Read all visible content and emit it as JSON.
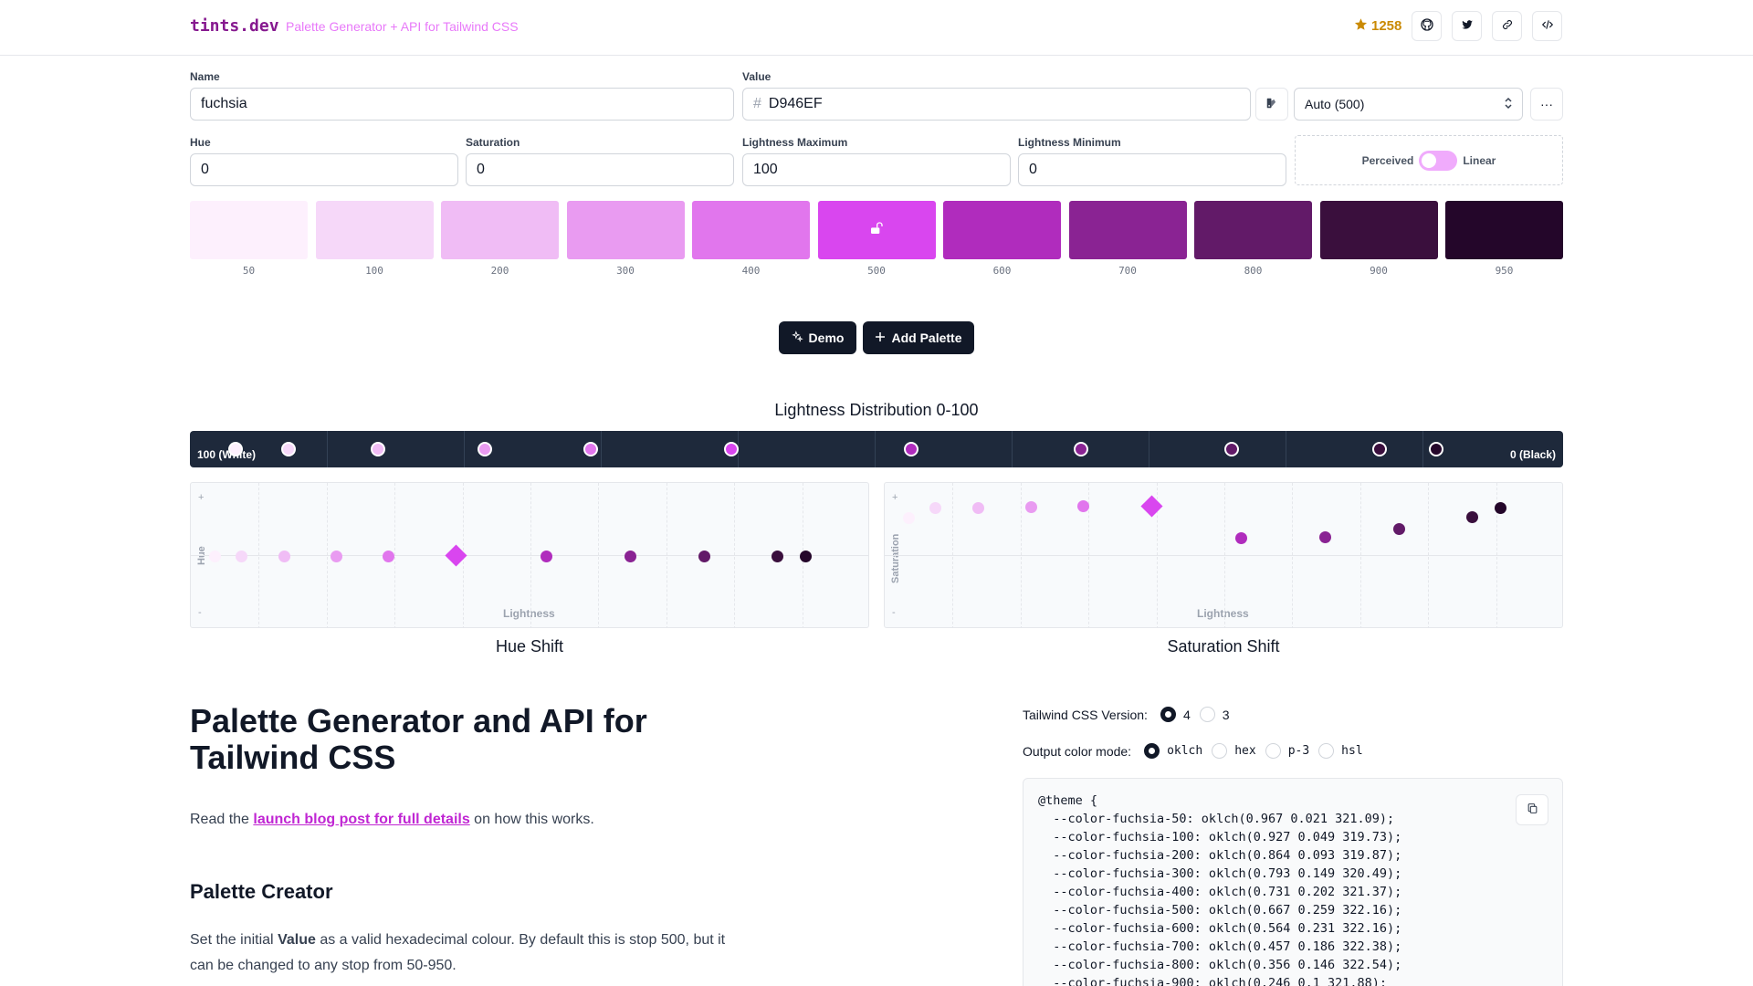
{
  "header": {
    "brand": "tints.dev",
    "tagline": "Palette Generator + API for Tailwind CSS",
    "stars": "1258",
    "icons": [
      "github-icon",
      "twitter-icon",
      "link-icon",
      "code-icon"
    ]
  },
  "form": {
    "name_label": "Name",
    "name_value": "fuchsia",
    "value_label": "Value",
    "value_hash": "#",
    "value_value": "D946EF",
    "stop_select": "Auto (500)",
    "more_label": "···",
    "hue_label": "Hue",
    "hue_value": "0",
    "saturation_label": "Saturation",
    "saturation_value": "0",
    "lmax_label": "Lightness Maximum",
    "lmax_value": "100",
    "lmin_label": "Lightness Minimum",
    "lmin_value": "0",
    "toggle_left": "Perceived",
    "toggle_right": "Linear"
  },
  "swatches": [
    {
      "stop": "50",
      "color": "#fdf0fd"
    },
    {
      "stop": "100",
      "color": "#f6d8f9"
    },
    {
      "stop": "200",
      "color": "#f0bcf5"
    },
    {
      "stop": "300",
      "color": "#e99bf1"
    },
    {
      "stop": "400",
      "color": "#e176ed"
    },
    {
      "stop": "500",
      "color": "#d946ef"
    },
    {
      "stop": "600",
      "color": "#b02cbd"
    },
    {
      "stop": "700",
      "color": "#8a2393"
    },
    {
      "stop": "800",
      "color": "#621a68"
    },
    {
      "stop": "900",
      "color": "#3a0f3d"
    },
    {
      "stop": "950",
      "color": "#24062a"
    }
  ],
  "actions": {
    "demo": "Demo",
    "add_palette": "Add Palette"
  },
  "lightness": {
    "title": "Lightness Distribution 0-100",
    "left_label": "100 (White)",
    "right_label": "0 (Black)"
  },
  "hue_chart": {
    "title": "Hue Shift",
    "ylabel": "Hue",
    "xlabel": "Lightness",
    "plus": "+",
    "minus": "-"
  },
  "sat_chart": {
    "title": "Saturation Shift",
    "ylabel": "Saturation",
    "xlabel": "Lightness",
    "plus": "+",
    "minus": "-"
  },
  "content": {
    "heading": "Palette Generator and API for Tailwind CSS",
    "read_prefix": "Read the ",
    "read_link": "launch blog post for full details",
    "read_suffix": " on how this works.",
    "creator_heading": "Palette Creator",
    "creator_p1": "Set the initial ",
    "creator_bold": "Value",
    "creator_p2": " as a valid hexadecimal colour. By default this is stop 500, but it",
    "creator_p3": "can be changed to any stop from 50-950."
  },
  "output": {
    "version_label": "Tailwind CSS Version:",
    "versions": [
      {
        "label": "4",
        "selected": true
      },
      {
        "label": "3",
        "selected": false
      }
    ],
    "mode_label": "Output color mode:",
    "modes": [
      {
        "label": "oklch",
        "selected": true
      },
      {
        "label": "hex",
        "selected": false
      },
      {
        "label": "p-3",
        "selected": false
      },
      {
        "label": "hsl",
        "selected": false
      }
    ],
    "code_lines": [
      "@theme {",
      "  --color-fuchsia-50: oklch(0.967 0.021 321.09);",
      "  --color-fuchsia-100: oklch(0.927 0.049 319.73);",
      "  --color-fuchsia-200: oklch(0.864 0.093 319.87);",
      "  --color-fuchsia-300: oklch(0.793 0.149 320.49);",
      "  --color-fuchsia-400: oklch(0.731 0.202 321.37);",
      "  --color-fuchsia-500: oklch(0.667 0.259 322.16);",
      "  --color-fuchsia-600: oklch(0.564 0.231 322.16);",
      "  --color-fuchsia-700: oklch(0.457 0.186 322.38);",
      "  --color-fuchsia-800: oklch(0.356 0.146 322.54);",
      "  --color-fuchsia-900: oklch(0.246 0.1 321.88);"
    ]
  }
}
